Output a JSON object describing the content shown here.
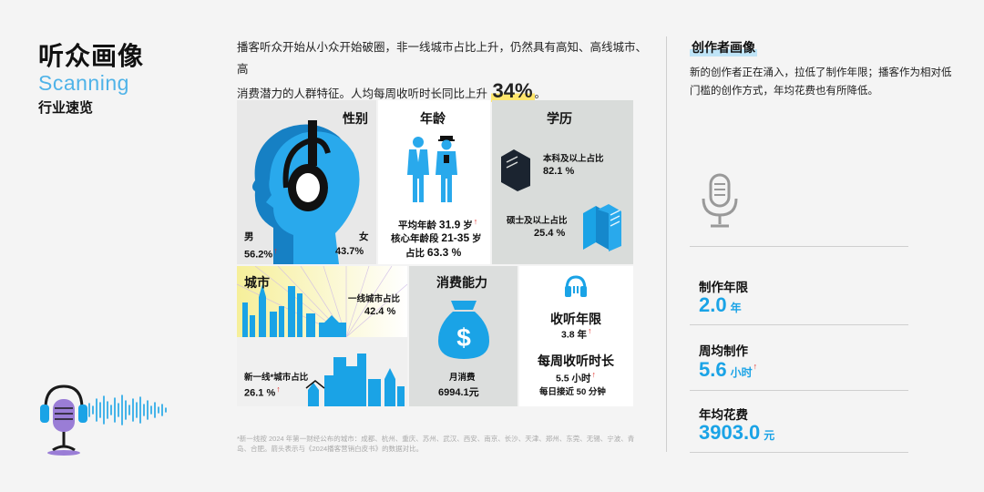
{
  "heading": {
    "title": "听众画像",
    "subtitle_en": "Scanning",
    "subtitle_cn": "行业速览"
  },
  "intro": {
    "text_line1": "播客听众开始从小众开始破圈，非一线城市占比上升，仍然具有高知、高线城市、高",
    "text_line2": "消费潜力的人群特征。人均每周收听时长同比上升",
    "highlight": "34%",
    "end": "。"
  },
  "gender": {
    "title": "性别",
    "male_label": "男",
    "male_value": "56.2%",
    "female_label": "女",
    "female_value": "43.7%"
  },
  "age": {
    "title": "年龄",
    "avg_label": "平均年龄",
    "avg_value": "31.9",
    "avg_unit": "岁",
    "core_label": "核心年龄段",
    "core_value": "21-35",
    "core_unit": "岁",
    "share_label": "占比",
    "share_value": "63.3 %"
  },
  "education": {
    "title": "学历",
    "bachelor_label": "本科及以上占比",
    "bachelor_value": "82.1 %",
    "master_label": "硕士及以上占比",
    "master_value": "25.4 %"
  },
  "city": {
    "title": "城市",
    "tier1_label": "一线城市占比",
    "tier1_value": "42.4 %",
    "newtier1_label": "新一线*城市占比",
    "newtier1_value": "26.1 %"
  },
  "consume": {
    "title": "消费能力",
    "monthly_label": "月消费",
    "monthly_value": "6994.1元"
  },
  "listen": {
    "years_title": "收听年限",
    "years_value": "3.8",
    "years_unit": "年",
    "weekly_title": "每周收听时长",
    "weekly_value": "5.5",
    "weekly_unit": "小时",
    "daily_label": "每日接近",
    "daily_value": "50",
    "daily_unit": "分钟"
  },
  "footnote": "*新一线按 2024 年第一财经公布的城市：成都、杭州、重庆、苏州、武汉、西安、南京、长沙、天津、郑州、东莞、无锡、宁波、青岛、合肥。箭头表示与《2024播客营销白皮书》的数据对比。",
  "creator": {
    "title": "创作者画像",
    "desc": "新的创作者正在涌入，拉低了制作年限；播客作为相对低门槛的创作方式，年均花费也有所降低。",
    "stats": [
      {
        "label": "制作年限",
        "value": "2.0",
        "unit": "年"
      },
      {
        "label": "周均制作",
        "value": "5.6",
        "unit": "小时"
      },
      {
        "label": "年均花费",
        "value": "3903.0",
        "unit": "元"
      }
    ]
  },
  "colors": {
    "accent": "#1aa3e6",
    "arrow": "#e0302a",
    "highlight": "#ffe66d"
  },
  "icons": [
    "headphones-head-icon",
    "people-icon",
    "books-icon",
    "skyline-icon",
    "money-bag-icon",
    "headphones-icon",
    "microphone-icon",
    "podcast-mic-icon",
    "soundwave-icon"
  ]
}
